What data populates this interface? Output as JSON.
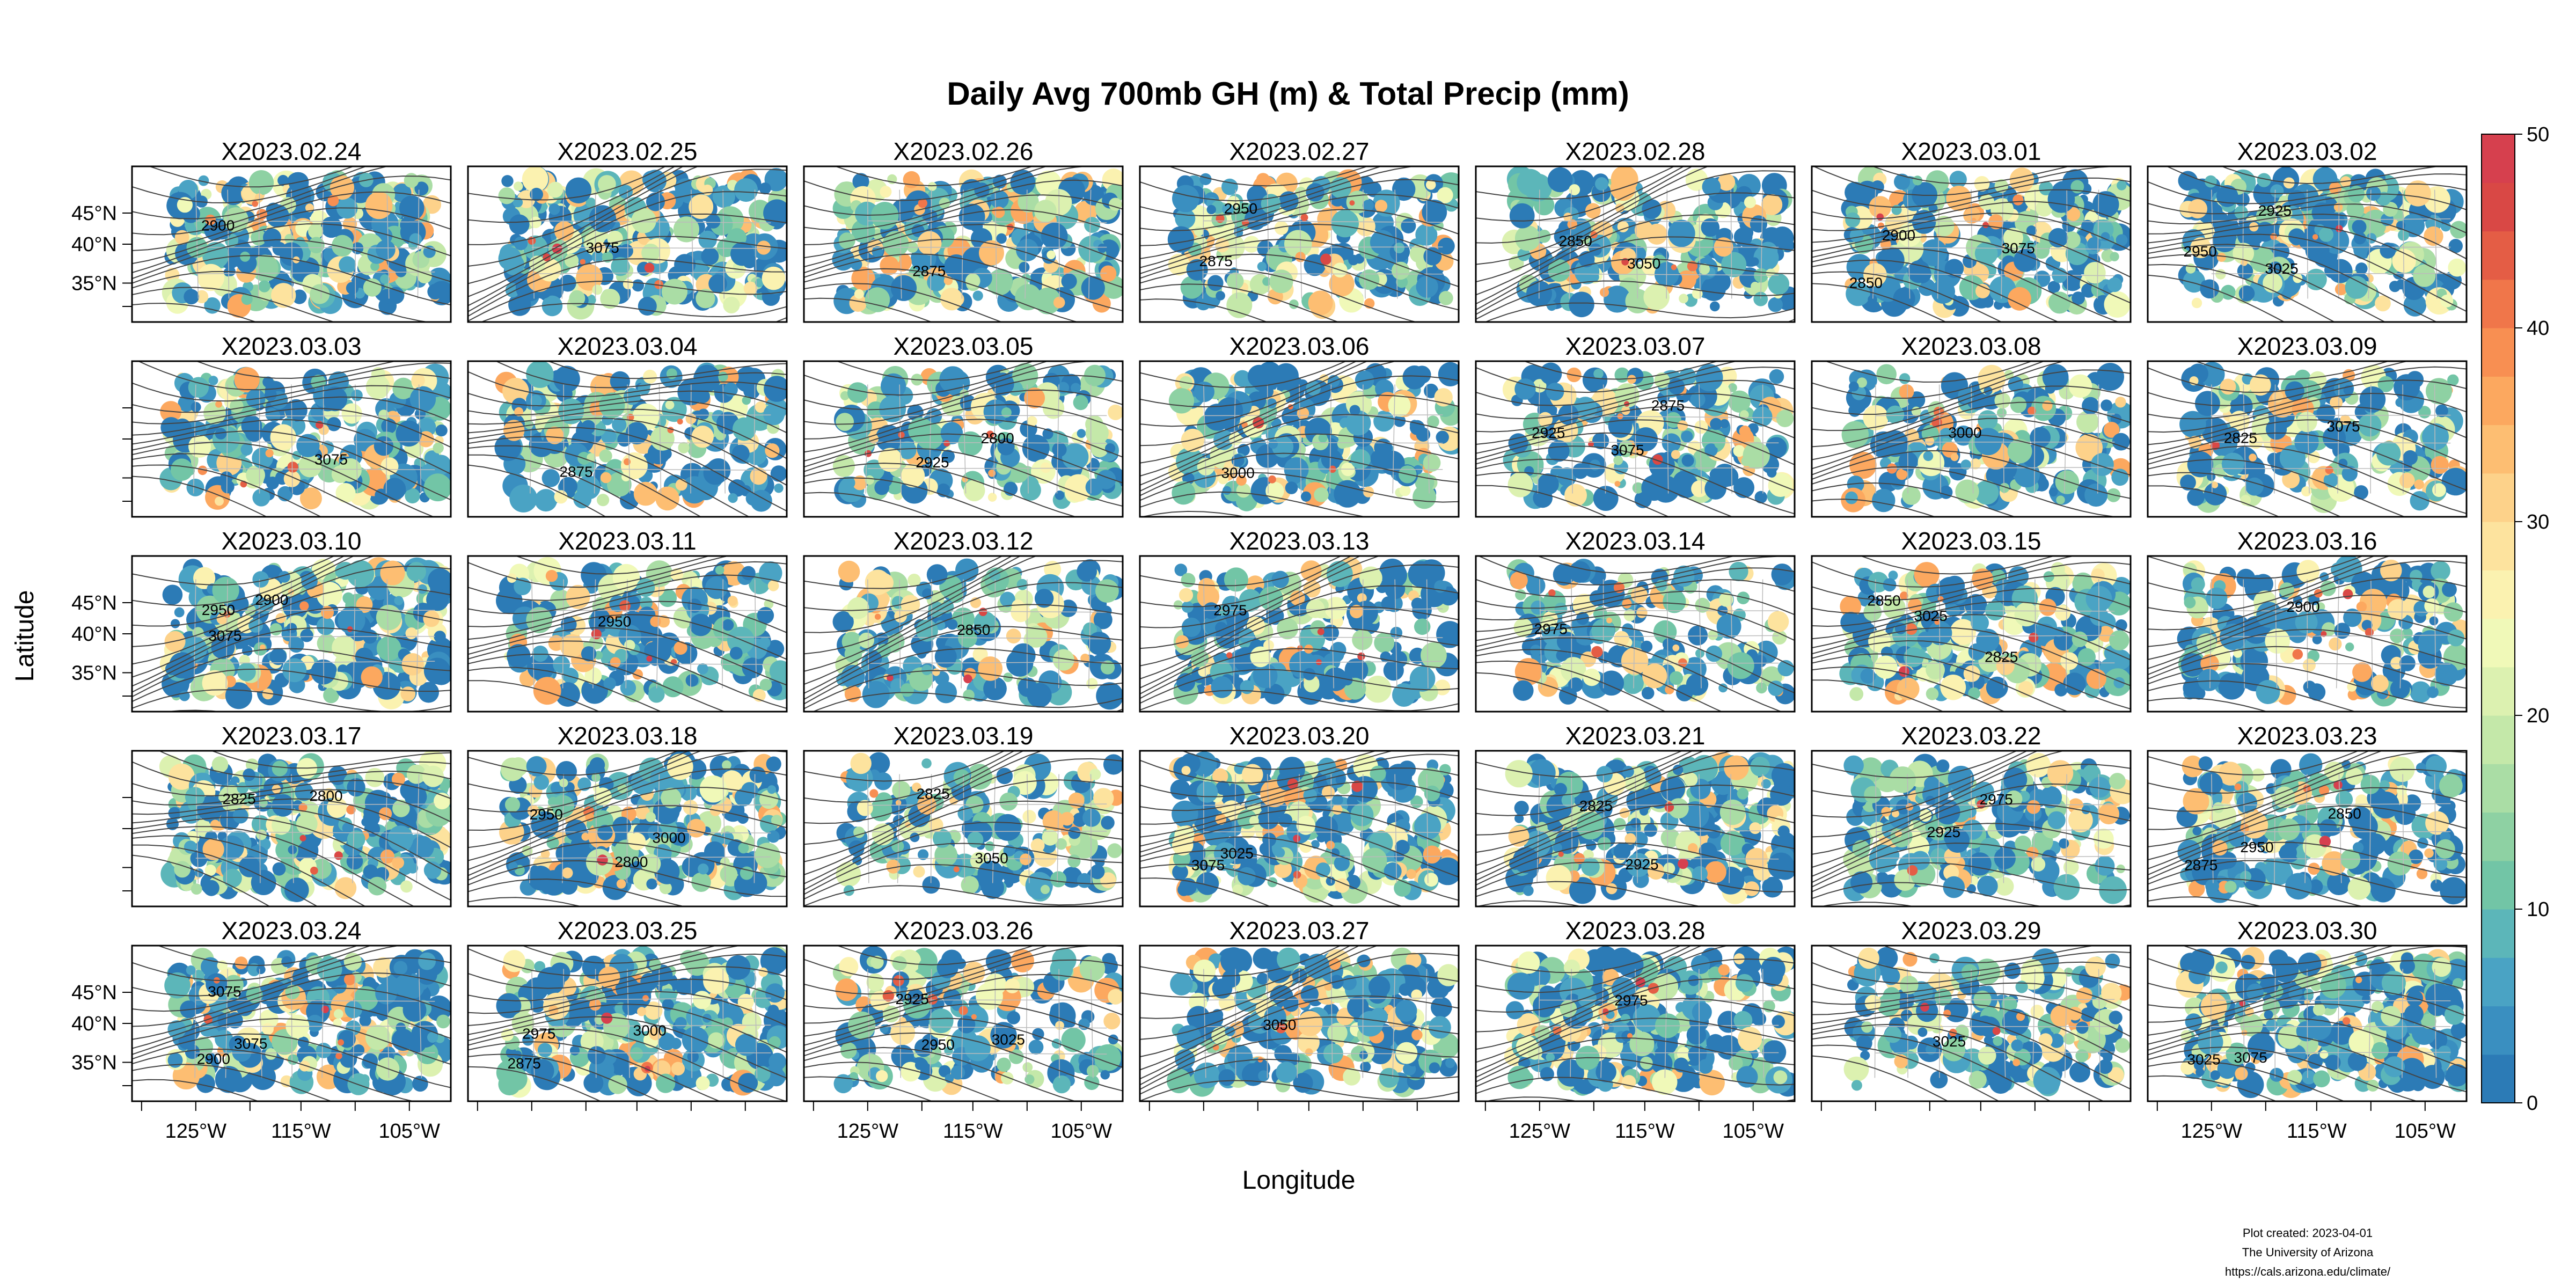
{
  "figure": {
    "title": "Daily Avg 700mb GH (m) & Total Precip (mm)",
    "xlabel": "Longitude",
    "ylabel": "Latitude",
    "panel_titles": [
      "X2023.02.24",
      "X2023.02.25",
      "X2023.02.26",
      "X2023.02.27",
      "X2023.02.28",
      "X2023.03.01",
      "X2023.03.02",
      "X2023.03.03",
      "X2023.03.04",
      "X2023.03.05",
      "X2023.03.06",
      "X2023.03.07",
      "X2023.03.08",
      "X2023.03.09",
      "X2023.03.10",
      "X2023.03.11",
      "X2023.03.12",
      "X2023.03.13",
      "X2023.03.14",
      "X2023.03.15",
      "X2023.03.16",
      "X2023.03.17",
      "X2023.03.18",
      "X2023.03.19",
      "X2023.03.20",
      "X2023.03.21",
      "X2023.03.22",
      "X2023.03.23",
      "X2023.03.24",
      "X2023.03.25",
      "X2023.03.26",
      "X2023.03.27",
      "X2023.03.28",
      "X2023.03.29",
      "X2023.03.30"
    ],
    "lat_tick_labels": [
      "45°N",
      "40°N",
      "35°N"
    ],
    "lon_tick_labels": [
      "125°W",
      "115°W",
      "105°W"
    ],
    "colorbar": {
      "tick_labels": [
        "0",
        "10",
        "20",
        "30",
        "40",
        "50"
      ],
      "min": 0,
      "max": 50,
      "colors": [
        "#2c7bb6",
        "#3a8fc0",
        "#4aa3c4",
        "#5cb6b9",
        "#72c5a6",
        "#8ed1a3",
        "#aadda5",
        "#c4e8a9",
        "#dcf1b0",
        "#f0f9b8",
        "#fbf2b0",
        "#fde39e",
        "#fdd28a",
        "#fdbe72",
        "#fca85f",
        "#f88f52",
        "#f0764a",
        "#e45d45",
        "#d94845",
        "#d6404e"
      ]
    },
    "contour_labels": [
      "2825",
      "2850",
      "2875",
      "2800",
      "2900",
      "2925",
      "2950",
      "2975",
      "3000",
      "3025",
      "3050",
      "3075"
    ],
    "credits": [
      "Plot created: 2023-04-01",
      "The University of Arizona",
      "https://cals.arizona.edu/climate/"
    ]
  }
}
